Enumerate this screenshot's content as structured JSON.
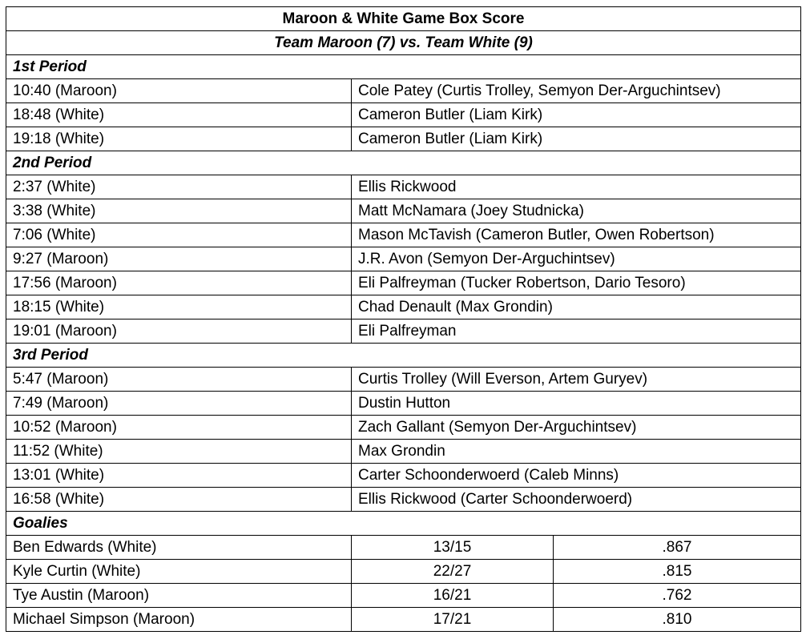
{
  "title": "Maroon & White Game Box Score",
  "subtitle": "Team Maroon (7) vs. Team White (9)",
  "periods": [
    {
      "label": "1st Period",
      "goals": [
        {
          "time": "10:40 (Maroon)",
          "scorer": "Cole Patey (Curtis Trolley, Semyon Der-Arguchintsev)"
        },
        {
          "time": "18:48 (White)",
          "scorer": "Cameron Butler (Liam Kirk)"
        },
        {
          "time": "19:18 (White)",
          "scorer": "Cameron Butler (Liam Kirk)"
        }
      ]
    },
    {
      "label": "2nd Period",
      "goals": [
        {
          "time": "2:37 (White)",
          "scorer": "Ellis Rickwood"
        },
        {
          "time": "3:38 (White)",
          "scorer": "Matt McNamara (Joey Studnicka)"
        },
        {
          "time": "7:06 (White)",
          "scorer": "Mason McTavish (Cameron Butler, Owen Robertson)"
        },
        {
          "time": "9:27 (Maroon)",
          "scorer": "J.R. Avon (Semyon Der-Arguchintsev)"
        },
        {
          "time": "17:56 (Maroon)",
          "scorer": "Eli Palfreyman (Tucker Robertson, Dario Tesoro)"
        },
        {
          "time": "18:15 (White)",
          "scorer": "Chad Denault (Max Grondin)"
        },
        {
          "time": "19:01 (Maroon)",
          "scorer": "Eli Palfreyman"
        }
      ]
    },
    {
      "label": "3rd Period",
      "goals": [
        {
          "time": "5:47 (Maroon)",
          "scorer": "Curtis Trolley (Will Everson, Artem Guryev)"
        },
        {
          "time": "7:49 (Maroon)",
          "scorer": "Dustin Hutton"
        },
        {
          "time": "10:52 (Maroon)",
          "scorer": "Zach Gallant (Semyon Der-Arguchintsev)"
        },
        {
          "time": "11:52 (White)",
          "scorer": "Max Grondin"
        },
        {
          "time": "13:01 (White)",
          "scorer": "Carter Schoonderwoerd (Caleb Minns)"
        },
        {
          "time": "16:58 (White)",
          "scorer": "Ellis Rickwood (Carter Schoonderwoerd)"
        }
      ]
    }
  ],
  "goalies": {
    "label": "Goalies",
    "rows": [
      {
        "name": "Ben Edwards (White)",
        "saves": "13/15",
        "pct": ".867"
      },
      {
        "name": "Kyle Curtin (White)",
        "saves": "22/27",
        "pct": ".815"
      },
      {
        "name": "Tye Austin (Maroon)",
        "saves": "16/21",
        "pct": ".762"
      },
      {
        "name": "Michael Simpson (Maroon)",
        "saves": "17/21",
        "pct": ".810"
      }
    ]
  }
}
